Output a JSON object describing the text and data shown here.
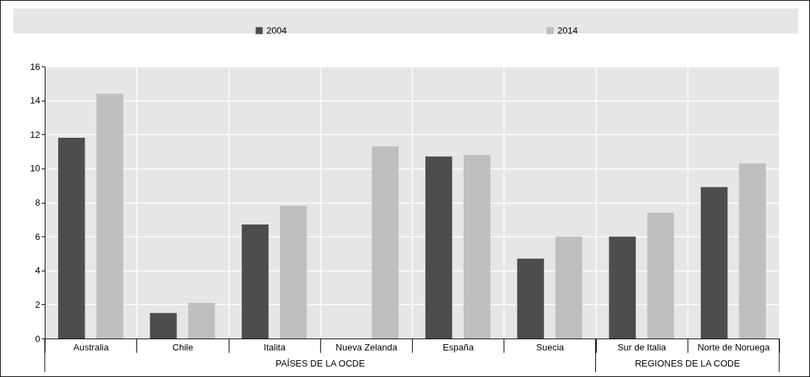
{
  "chart_data": {
    "type": "bar",
    "categories": [
      "Australia",
      "Chile",
      "Italita",
      "Nueva Zelanda",
      "España",
      "Suecia",
      "Sur de Italia",
      "Norte de Noruega"
    ],
    "series": [
      {
        "name": "2004",
        "color": "#4d4d4d",
        "values": [
          11.8,
          1.5,
          6.7,
          null,
          10.7,
          4.7,
          6.0,
          8.9
        ]
      },
      {
        "name": "2014",
        "color": "#bfbfbf",
        "values": [
          14.4,
          2.1,
          7.8,
          11.3,
          10.8,
          6.0,
          7.4,
          10.3
        ]
      }
    ],
    "ylim": [
      0,
      16
    ],
    "yticks": [
      0,
      2,
      4,
      6,
      8,
      10,
      12,
      14,
      16
    ],
    "grid": true,
    "legend": "top",
    "annotations": [
      "PAÍSES DE LA OCDE",
      "REGIONES DE LA CODE"
    ]
  }
}
